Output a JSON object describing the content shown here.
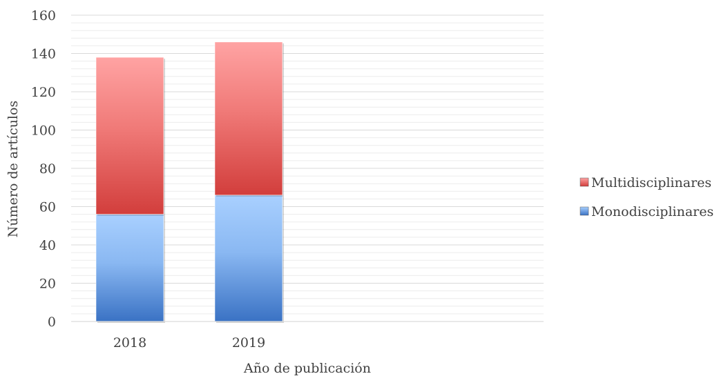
{
  "chart_data": {
    "type": "bar",
    "stacked": true,
    "categories": [
      "2018",
      "2019"
    ],
    "series": [
      {
        "name": "Monodisciplinares",
        "values": [
          56,
          66
        ],
        "color": "#5b9bd5"
      },
      {
        "name": "Multidisciplinares",
        "values": [
          82,
          80
        ],
        "color": "#e05a57"
      }
    ],
    "xlabel": "Año de publicación",
    "ylabel": "Número de artículos",
    "ylim": [
      0,
      160
    ],
    "yticks": [
      0,
      20,
      40,
      60,
      80,
      100,
      120,
      140,
      160
    ],
    "grid": true,
    "legend_position": "right",
    "legend_order": [
      "Multidisciplinares",
      "Monodisciplinares"
    ]
  }
}
